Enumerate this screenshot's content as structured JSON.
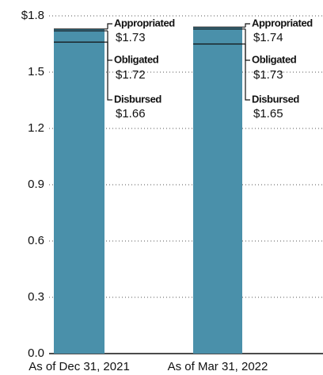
{
  "chart_data": {
    "type": "bar",
    "categories": [
      "As of Dec 31, 2021",
      "As of Mar 31, 2022"
    ],
    "series": [
      {
        "name": "Appropriated",
        "color": "#4a90aa",
        "values": [
          1.73,
          1.74
        ],
        "value_labels": [
          "$1.73",
          "$1.74"
        ]
      },
      {
        "name": "Obligated",
        "color": "#111111",
        "values": [
          1.72,
          1.73
        ],
        "value_labels": [
          "$1.72",
          "$1.73"
        ]
      },
      {
        "name": "Disbursed",
        "color": "#111111",
        "values": [
          1.66,
          1.65
        ],
        "value_labels": [
          "$1.66",
          "$1.65"
        ]
      }
    ],
    "ylim": [
      0,
      1.8
    ],
    "yticks": [
      {
        "value": 0,
        "label": "0.0"
      },
      0.3,
      0.6,
      0.9,
      1.2,
      1.5,
      {
        "value": 1.8,
        "label": "$1.8"
      }
    ],
    "grid": true
  }
}
